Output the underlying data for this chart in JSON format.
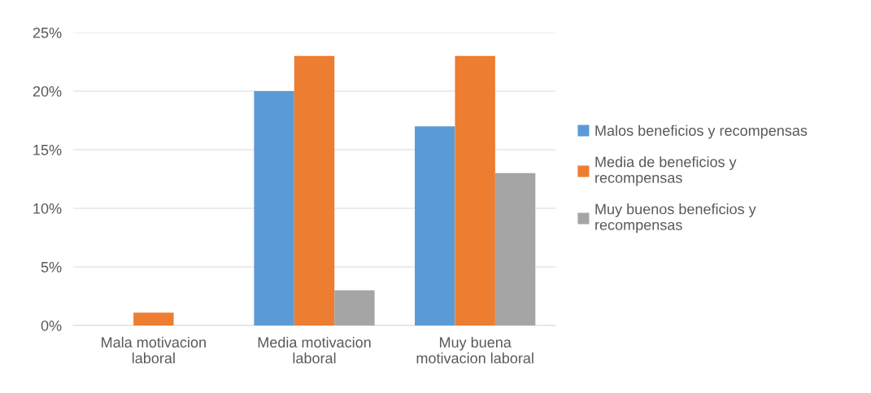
{
  "chart_data": {
    "type": "bar",
    "categories": [
      "Mala motivacion\nlaboral",
      "Media motivacion\nlaboral",
      "Muy buena\nmotivacion laboral"
    ],
    "series": [
      {
        "name": "Malos beneficios y recompensas",
        "color": "#5b9bd5",
        "values": [
          0,
          20,
          17
        ]
      },
      {
        "name": "Media de beneficios y\nrecompensas",
        "color": "#ed7d31",
        "values": [
          1.1,
          23,
          23
        ]
      },
      {
        "name": "Muy buenos beneficios y\nrecompensas",
        "color": "#a5a5a5",
        "values": [
          0,
          3,
          13
        ]
      }
    ],
    "ylim": [
      0,
      25
    ],
    "yticks": [
      {
        "value": 0,
        "label": "0%"
      },
      {
        "value": 5,
        "label": "5%"
      },
      {
        "value": 10,
        "label": "10%"
      },
      {
        "value": 15,
        "label": "15%"
      },
      {
        "value": 20,
        "label": "20%"
      },
      {
        "value": 25,
        "label": "25%"
      }
    ],
    "grid": "y",
    "legend": "right"
  }
}
